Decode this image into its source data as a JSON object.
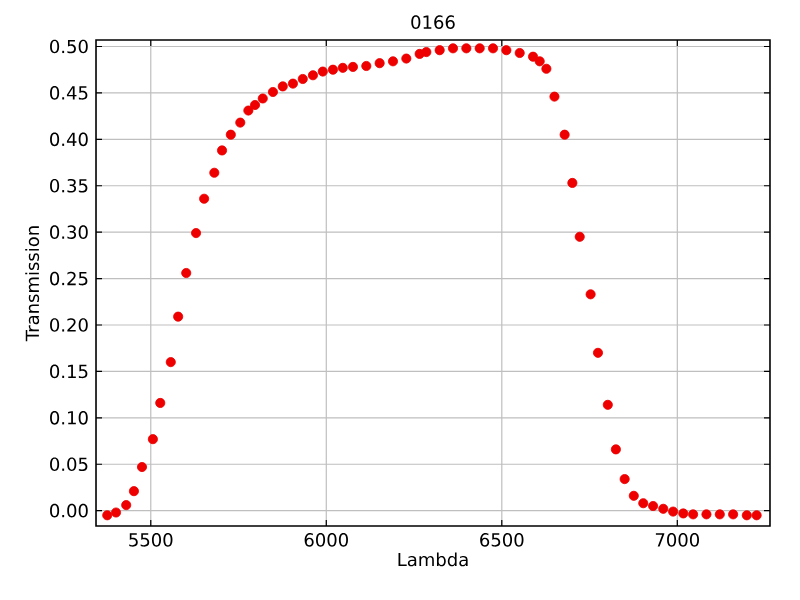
{
  "chart_data": {
    "type": "scatter",
    "title": "0166",
    "xlabel": "Lambda",
    "ylabel": "Transmission",
    "xlim": [
      5344,
      7264
    ],
    "xticks": [
      5500,
      6000,
      6500,
      7000
    ],
    "ylim": [
      -0.0165,
      0.507
    ],
    "yticks": [
      {
        "value": 0,
        "label": "0.00"
      },
      {
        "value": 0.05,
        "label": "0.05"
      },
      {
        "value": 0.1,
        "label": "0.10"
      },
      {
        "value": 0.15,
        "label": "0.15"
      },
      {
        "value": 0.2,
        "label": "0.20"
      },
      {
        "value": 0.25,
        "label": "0.25"
      },
      {
        "value": 0.3,
        "label": "0.30"
      },
      {
        "value": 0.35,
        "label": "0.35"
      },
      {
        "value": 0.4,
        "label": "0.40"
      },
      {
        "value": 0.45,
        "label": "0.45"
      },
      {
        "value": 0.5,
        "label": "0.50"
      }
    ],
    "grid": true,
    "marker": "circle",
    "series": [
      {
        "color": "#ee0000",
        "x": [
          5376,
          5401,
          5430,
          5452,
          5475,
          5506,
          5527,
          5557,
          5578,
          5601,
          5629,
          5652,
          5681,
          5703,
          5728,
          5755,
          5778,
          5797,
          5819,
          5848,
          5876,
          5905,
          5933,
          5962,
          5990,
          6019,
          6047,
          6076,
          6114,
          6152,
          6190,
          6228,
          6266,
          6285,
          6323,
          6361,
          6399,
          6437,
          6475,
          6513,
          6551,
          6589,
          6608,
          6627,
          6650,
          6679,
          6701,
          6722,
          6753,
          6774,
          6802,
          6825,
          6850,
          6876,
          6903,
          6931,
          6960,
          6988,
          7017,
          7045,
          7083,
          7121,
          7159,
          7198,
          7226
        ],
        "values": [
          -0.005,
          -0.002,
          0.006,
          0.021,
          0.047,
          0.077,
          0.116,
          0.16,
          0.209,
          0.256,
          0.299,
          0.336,
          0.364,
          0.388,
          0.405,
          0.418,
          0.431,
          0.437,
          0.444,
          0.451,
          0.457,
          0.46,
          0.465,
          0.469,
          0.473,
          0.475,
          0.477,
          0.478,
          0.479,
          0.482,
          0.484,
          0.487,
          0.492,
          0.494,
          0.496,
          0.498,
          0.498,
          0.498,
          0.498,
          0.496,
          0.493,
          0.489,
          0.484,
          0.476,
          0.446,
          0.405,
          0.353,
          0.295,
          0.233,
          0.17,
          0.114,
          0.066,
          0.034,
          0.016,
          0.008,
          0.005,
          0.002,
          -0.001,
          -0.003,
          -0.004,
          -0.004,
          -0.004,
          -0.004,
          -0.005,
          -0.005
        ]
      }
    ]
  }
}
